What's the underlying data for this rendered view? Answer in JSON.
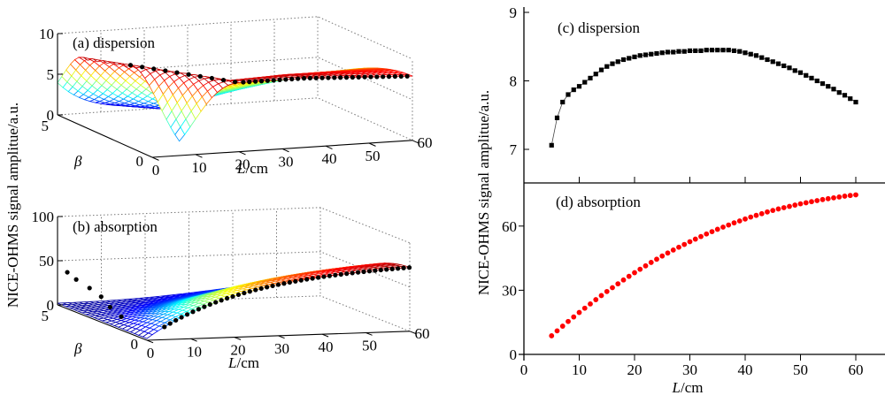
{
  "figure": {
    "shared_ylabel": "NICE-OHMS signal amplitue/a.u."
  },
  "chart_data": [
    {
      "id": "a",
      "type": "surface3d",
      "title": "(a) dispersion",
      "xlabel": "L/cm",
      "xlabel_var": "L",
      "xlabel_unit": "/cm",
      "ylabel": "β",
      "zlabel": "NICE-OHMS signal amplitue/a.u.",
      "x_ticks": [
        "0",
        "10",
        "20",
        "30",
        "40",
        "50",
        "60"
      ],
      "y_ticks": [
        "0",
        "5"
      ],
      "z_ticks": [
        "0",
        "5",
        "10"
      ],
      "xlim": [
        0,
        60
      ],
      "ylim": [
        0,
        5
      ],
      "zlim": [
        0,
        10
      ],
      "grid": true,
      "colormap": "jet",
      "ridge_marker": "black-dots"
    },
    {
      "id": "b",
      "type": "surface3d",
      "title": "(b) absorption",
      "xlabel": "L/cm",
      "xlabel_var": "L",
      "xlabel_unit": "/cm",
      "ylabel": "β",
      "zlabel": "NICE-OHMS signal amplitue/a.u.",
      "x_ticks": [
        "0",
        "10",
        "20",
        "30",
        "40",
        "50",
        "60"
      ],
      "y_ticks": [
        "0",
        "5"
      ],
      "z_ticks": [
        "0",
        "50",
        "100"
      ],
      "xlim": [
        0,
        60
      ],
      "ylim": [
        0,
        5
      ],
      "zlim": [
        0,
        100
      ],
      "grid": true,
      "colormap": "jet",
      "ridge_marker": "black-dots"
    },
    {
      "id": "c",
      "type": "line",
      "title": "(c) dispersion",
      "marker": "square",
      "color": "#000000",
      "xlabel": "",
      "ylabel": "NICE-OHMS signal amplitue/a.u.",
      "xlim": [
        0,
        65
      ],
      "ylim": [
        6.5,
        9
      ],
      "y_ticks": [
        "7",
        "8",
        "9"
      ],
      "x": [
        5,
        6,
        7,
        8,
        9,
        10,
        11,
        12,
        13,
        14,
        15,
        16,
        17,
        18,
        19,
        20,
        21,
        22,
        23,
        24,
        25,
        26,
        27,
        28,
        29,
        30,
        31,
        32,
        33,
        34,
        35,
        36,
        37,
        38,
        39,
        40,
        41,
        42,
        43,
        44,
        45,
        46,
        47,
        48,
        49,
        50,
        51,
        52,
        53,
        54,
        55,
        56,
        57,
        58,
        59,
        60
      ],
      "y": [
        7.06,
        7.46,
        7.69,
        7.8,
        7.87,
        7.92,
        7.98,
        8.04,
        8.1,
        8.16,
        8.21,
        8.25,
        8.28,
        8.31,
        8.33,
        8.35,
        8.37,
        8.38,
        8.39,
        8.4,
        8.41,
        8.42,
        8.42,
        8.43,
        8.43,
        8.44,
        8.44,
        8.44,
        8.45,
        8.45,
        8.45,
        8.45,
        8.45,
        8.44,
        8.43,
        8.41,
        8.39,
        8.37,
        8.34,
        8.31,
        8.28,
        8.25,
        8.22,
        8.19,
        8.15,
        8.12,
        8.08,
        8.04,
        8.0,
        7.96,
        7.92,
        7.88,
        7.83,
        7.79,
        7.74,
        7.69
      ]
    },
    {
      "id": "d",
      "type": "scatter",
      "title": "(d) absorption",
      "marker": "circle",
      "color": "#ff0000",
      "xlabel": "L/cm",
      "xlabel_var": "L",
      "xlabel_unit": "/cm",
      "ylabel": "NICE-OHMS signal amplitue/a.u.",
      "xlim": [
        0,
        65
      ],
      "ylim": [
        0,
        80
      ],
      "x_ticks": [
        "0",
        "10",
        "20",
        "30",
        "40",
        "50",
        "60"
      ],
      "y_ticks": [
        "0",
        "30",
        "60"
      ],
      "x": [
        5,
        6,
        7,
        8,
        9,
        10,
        11,
        12,
        13,
        14,
        15,
        16,
        17,
        18,
        19,
        20,
        21,
        22,
        23,
        24,
        25,
        26,
        27,
        28,
        29,
        30,
        31,
        32,
        33,
        34,
        35,
        36,
        37,
        38,
        39,
        40,
        41,
        42,
        43,
        44,
        45,
        46,
        47,
        48,
        49,
        50,
        51,
        52,
        53,
        54,
        55,
        56,
        57,
        58,
        59,
        60
      ],
      "y": [
        8.7,
        11.0,
        13.2,
        15.4,
        17.5,
        19.6,
        21.6,
        23.6,
        25.6,
        27.5,
        29.4,
        31.2,
        33.0,
        34.8,
        36.5,
        38.2,
        39.8,
        41.4,
        43.0,
        44.5,
        46.0,
        47.4,
        48.8,
        50.1,
        51.4,
        52.7,
        53.9,
        55.1,
        56.3,
        57.4,
        58.5,
        59.5,
        60.5,
        61.5,
        62.4,
        63.3,
        64.2,
        65.0,
        65.8,
        66.6,
        67.3,
        68.0,
        68.6,
        69.2,
        69.8,
        70.4,
        70.9,
        71.4,
        71.9,
        72.4,
        72.8,
        73.2,
        73.6,
        74.0,
        74.3,
        74.6
      ]
    }
  ]
}
